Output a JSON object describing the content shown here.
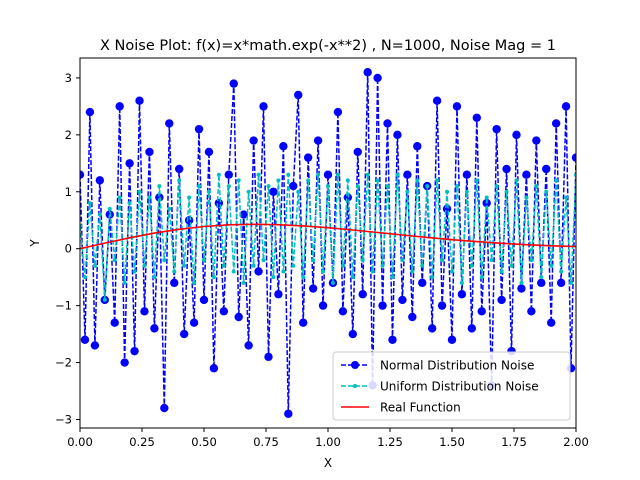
{
  "chart_data": {
    "type": "line",
    "title": "X Noise Plot: f(x)=x*math.exp(-x**2) , N=1000, Noise Mag = 1",
    "xlabel": "X",
    "ylabel": "Y",
    "xlim": [
      0,
      2
    ],
    "ylim": [
      -3.15,
      3.35
    ],
    "x_ticks": [
      "0.00",
      "0.25",
      "0.50",
      "0.75",
      "1.00",
      "1.25",
      "1.50",
      "1.75",
      "2.00"
    ],
    "y_ticks": [
      "−3",
      "−2",
      "−1",
      "0",
      "1",
      "2",
      "3"
    ],
    "grid": false,
    "legend_position": "bottom-right",
    "series": [
      {
        "name": "Normal Distribution Noise",
        "color": "#0000ff",
        "style": "dashed line with circle markers",
        "x": [
          0.0,
          0.02,
          0.04,
          0.06,
          0.08,
          0.1,
          0.12,
          0.14,
          0.16,
          0.18,
          0.2,
          0.22,
          0.24,
          0.26,
          0.28,
          0.3,
          0.32,
          0.34,
          0.36,
          0.38,
          0.4,
          0.42,
          0.44,
          0.46,
          0.48,
          0.5,
          0.52,
          0.54,
          0.56,
          0.58,
          0.6,
          0.62,
          0.64,
          0.66,
          0.68,
          0.7,
          0.72,
          0.74,
          0.76,
          0.78,
          0.8,
          0.82,
          0.84,
          0.86,
          0.88,
          0.9,
          0.92,
          0.94,
          0.96,
          0.98,
          1.0,
          1.02,
          1.04,
          1.06,
          1.08,
          1.1,
          1.12,
          1.14,
          1.16,
          1.18,
          1.2,
          1.22,
          1.24,
          1.26,
          1.28,
          1.3,
          1.32,
          1.34,
          1.36,
          1.38,
          1.4,
          1.42,
          1.44,
          1.46,
          1.48,
          1.5,
          1.52,
          1.54,
          1.56,
          1.58,
          1.6,
          1.62,
          1.64,
          1.66,
          1.68,
          1.7,
          1.72,
          1.74,
          1.76,
          1.78,
          1.8,
          1.82,
          1.84,
          1.86,
          1.88,
          1.9,
          1.92,
          1.94,
          1.96,
          1.98,
          2.0
        ],
        "y": [
          1.3,
          -1.6,
          2.4,
          -1.7,
          1.2,
          -0.9,
          0.6,
          -1.3,
          2.5,
          -2.0,
          1.5,
          -1.8,
          2.6,
          -1.1,
          1.7,
          -1.4,
          0.9,
          -2.8,
          2.2,
          -0.6,
          1.4,
          -1.5,
          0.5,
          -1.3,
          2.1,
          -0.9,
          1.7,
          -2.1,
          0.8,
          -1.1,
          1.3,
          2.9,
          -1.2,
          0.6,
          -1.7,
          1.9,
          -0.4,
          2.5,
          -1.9,
          1.0,
          -0.8,
          1.8,
          -2.9,
          1.1,
          2.7,
          -1.3,
          1.6,
          -0.7,
          1.9,
          -1.0,
          1.3,
          -0.6,
          2.4,
          -1.1,
          0.9,
          -1.5,
          1.7,
          -0.8,
          3.1,
          -2.4,
          3.0,
          -1.0,
          2.2,
          -1.6,
          2.0,
          -0.9,
          1.3,
          -1.2,
          1.8,
          -0.6,
          1.1,
          -1.4,
          2.6,
          -1.0,
          0.7,
          -1.6,
          2.5,
          -0.8,
          1.3,
          -1.4,
          2.3,
          -1.1,
          0.8,
          -2.4,
          2.1,
          -0.9,
          1.4,
          -1.8,
          2.0,
          -0.7,
          1.3,
          -1.1,
          1.9,
          -0.6,
          1.4,
          -1.3,
          2.2,
          -0.6,
          2.5,
          -2.1,
          1.6
        ]
      },
      {
        "name": "Uniform Distribution Noise",
        "color": "#00bfbf",
        "style": "dashed line with small dot markers",
        "x": [
          0.0,
          0.02,
          0.04,
          0.06,
          0.08,
          0.1,
          0.12,
          0.14,
          0.16,
          0.18,
          0.2,
          0.22,
          0.24,
          0.26,
          0.28,
          0.3,
          0.32,
          0.34,
          0.36,
          0.38,
          0.4,
          0.42,
          0.44,
          0.46,
          0.48,
          0.5,
          0.52,
          0.54,
          0.56,
          0.58,
          0.6,
          0.62,
          0.64,
          0.66,
          0.68,
          0.7,
          0.72,
          0.74,
          0.76,
          0.78,
          0.8,
          0.82,
          0.84,
          0.86,
          0.88,
          0.9,
          0.92,
          0.94,
          0.96,
          0.98,
          1.0,
          1.02,
          1.04,
          1.06,
          1.08,
          1.1,
          1.12,
          1.14,
          1.16,
          1.18,
          1.2,
          1.22,
          1.24,
          1.26,
          1.28,
          1.3,
          1.32,
          1.34,
          1.36,
          1.38,
          1.4,
          1.42,
          1.44,
          1.46,
          1.48,
          1.5,
          1.52,
          1.54,
          1.56,
          1.58,
          1.6,
          1.62,
          1.64,
          1.66,
          1.68,
          1.7,
          1.72,
          1.74,
          1.76,
          1.78,
          1.8,
          1.82,
          1.84,
          1.86,
          1.88,
          1.9,
          1.92,
          1.94,
          1.96,
          1.98,
          2.0
        ],
        "y": [
          0.4,
          -0.5,
          0.8,
          -0.3,
          0.6,
          -0.9,
          0.7,
          -0.2,
          0.9,
          -0.6,
          0.8,
          -0.4,
          1.0,
          -0.3,
          0.9,
          -0.5,
          1.1,
          -0.2,
          0.7,
          -0.4,
          1.2,
          -0.3,
          0.9,
          -0.6,
          1.1,
          -0.2,
          1.0,
          -0.5,
          1.3,
          -0.3,
          1.1,
          -0.4,
          1.2,
          -0.6,
          1.0,
          -0.3,
          1.3,
          -0.2,
          1.1,
          -0.5,
          1.2,
          -0.4,
          1.3,
          -0.3,
          1.0,
          -0.5,
          1.2,
          -0.2,
          1.3,
          -0.4,
          1.1,
          -0.6,
          1.3,
          -0.3,
          1.2,
          -0.5,
          1.1,
          -0.2,
          1.3,
          -0.4,
          1.2,
          -0.3,
          1.1,
          -0.5,
          1.3,
          -0.2,
          1.0,
          -0.4,
          1.2,
          -0.3,
          1.1,
          -0.5,
          1.2,
          -0.2,
          1.0,
          -0.4,
          1.1,
          -0.6,
          1.0,
          -0.3,
          1.2,
          -0.5,
          0.9,
          -0.2,
          1.1,
          -0.4,
          1.0,
          -0.3,
          1.2,
          -0.6,
          0.9,
          -0.2,
          1.1,
          -0.5,
          1.0,
          -0.3,
          1.2,
          -0.4,
          0.9,
          -0.6,
          1.3
        ]
      },
      {
        "name": "Real Function",
        "color": "#ff0000",
        "style": "solid line",
        "x": [
          0.0,
          0.1,
          0.2,
          0.3,
          0.4,
          0.5,
          0.6,
          0.7,
          0.8,
          0.9,
          1.0,
          1.1,
          1.2,
          1.3,
          1.4,
          1.5,
          1.6,
          1.7,
          1.8,
          1.9,
          2.0
        ],
        "y": [
          0.0,
          0.099,
          0.192,
          0.274,
          0.341,
          0.389,
          0.419,
          0.429,
          0.422,
          0.4,
          0.368,
          0.328,
          0.284,
          0.24,
          0.198,
          0.158,
          0.124,
          0.095,
          0.07,
          0.051,
          0.037
        ]
      }
    ]
  }
}
